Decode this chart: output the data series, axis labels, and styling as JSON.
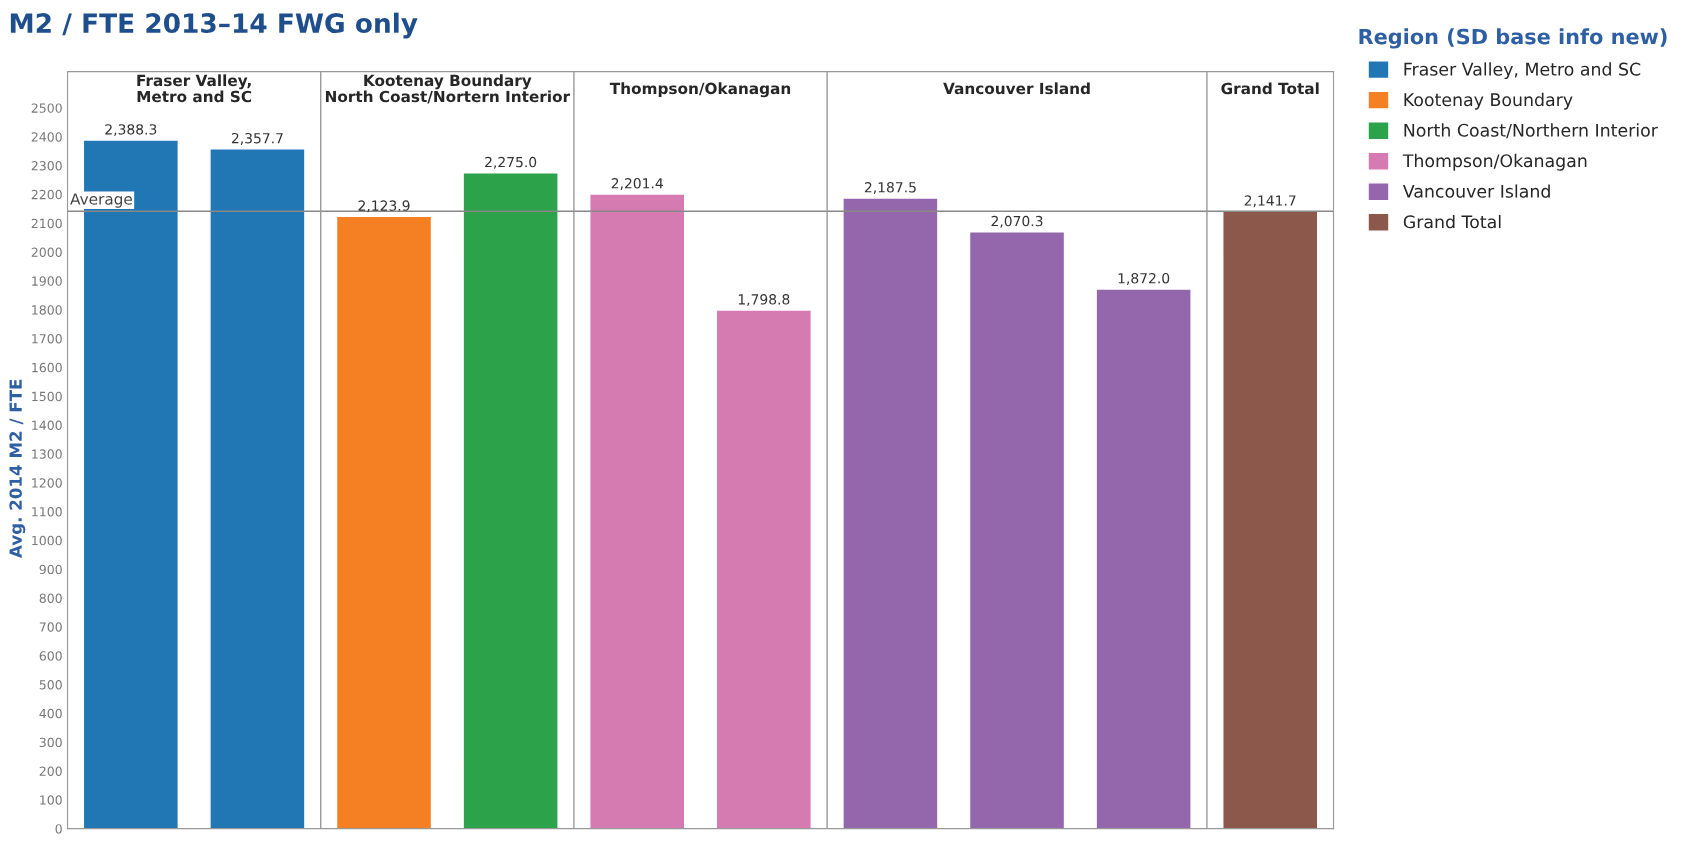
{
  "chart_data": {
    "type": "bar",
    "title": "M2 / FTE 2013–14 FWG only",
    "ylabel": "Avg. 2014 M2 / FTE",
    "legend_title": "Region (SD base info new)",
    "categories": [
      null,
      null,
      null,
      null,
      null,
      null,
      null,
      null,
      null,
      null
    ],
    "series": [
      {
        "name": "Fraser Valley, Metro and SC",
        "color": "#2077b4",
        "values": [
          2388.3,
          2357.7,
          null,
          null,
          null,
          null,
          null,
          null,
          null,
          null
        ],
        "value_labels": [
          "2,388.3",
          "2,357.7",
          null,
          null,
          null,
          null,
          null,
          null,
          null,
          null
        ]
      },
      {
        "name": "Kootenay Boundary",
        "color": "#f58023",
        "values": [
          null,
          null,
          2123.9,
          null,
          null,
          null,
          null,
          null,
          null,
          null
        ],
        "value_labels": [
          null,
          null,
          "2,123.9",
          null,
          null,
          null,
          null,
          null,
          null,
          null
        ]
      },
      {
        "name": "North Coast/Northern Interior",
        "color": "#2ca24a",
        "values": [
          null,
          null,
          null,
          2275.0,
          null,
          null,
          null,
          null,
          null,
          null
        ],
        "value_labels": [
          null,
          null,
          null,
          "2,275.0",
          null,
          null,
          null,
          null,
          null,
          null
        ]
      },
      {
        "name": "Thompson/Okanagan",
        "color": "#d67ab2",
        "values": [
          null,
          null,
          null,
          null,
          2201.4,
          1798.8,
          null,
          null,
          null,
          null
        ],
        "value_labels": [
          null,
          null,
          null,
          null,
          "2,201.4",
          "1,798.8",
          null,
          null,
          null,
          null
        ]
      },
      {
        "name": "Vancouver Island",
        "color": "#9467ac",
        "values": [
          null,
          null,
          null,
          null,
          null,
          null,
          2187.5,
          2070.3,
          1872.0,
          null
        ],
        "value_labels": [
          null,
          null,
          null,
          null,
          null,
          null,
          "2,187.5",
          "2,070.3",
          "1,872.0",
          null
        ]
      },
      {
        "name": "Grand Total",
        "color": "#8c584b",
        "values": [
          null,
          null,
          null,
          null,
          null,
          null,
          null,
          null,
          null,
          2141.7
        ],
        "value_labels": [
          null,
          null,
          null,
          null,
          null,
          null,
          null,
          null,
          null,
          "2,141.7"
        ]
      }
    ],
    "ylim": [
      0,
      2500
    ],
    "yticks": [
      0,
      100,
      200,
      300,
      400,
      500,
      600,
      700,
      800,
      900,
      1000,
      1100,
      1200,
      1300,
      1400,
      1500,
      1600,
      1700,
      1800,
      1900,
      2000,
      2100,
      2200,
      2300,
      2400,
      2500
    ],
    "ref_lines": [
      {
        "axis": "y",
        "value": 2141.7,
        "label": "Average",
        "color": "#888888"
      }
    ],
    "annotations": [
      "Fraser Valley,\nMetro and SC",
      "Kootenay Boundary\nNorth Coast/Nortern Interior",
      "Thompson/Okanagan",
      "Vancouver Island",
      "Grand Total"
    ],
    "legend": "right",
    "grid": false
  }
}
